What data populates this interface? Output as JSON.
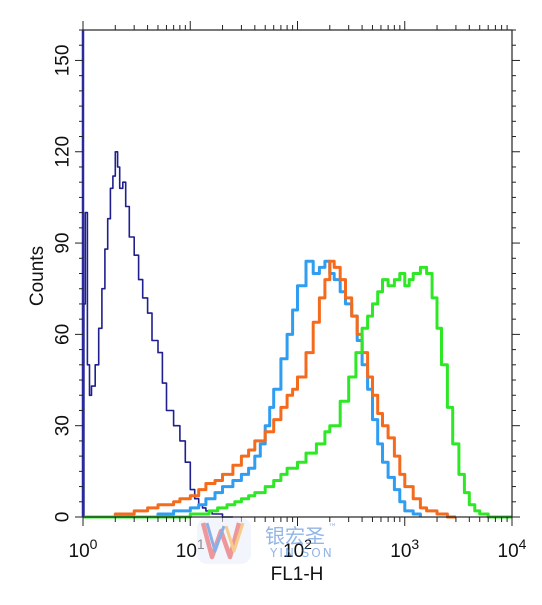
{
  "chart_data": {
    "type": "line",
    "xlabel": "FL1-H",
    "ylabel": "Counts",
    "x_scale": "log",
    "xlim": [
      1,
      10000
    ],
    "ylim": [
      0,
      160
    ],
    "x_ticks": [
      {
        "value": 1,
        "base": "10",
        "exp": "0"
      },
      {
        "value": 10,
        "base": "10",
        "exp": "1"
      },
      {
        "value": 100,
        "base": "10",
        "exp": "2"
      },
      {
        "value": 1000,
        "base": "10",
        "exp": "3"
      },
      {
        "value": 10000,
        "base": "10",
        "exp": "4"
      }
    ],
    "y_ticks": [
      0,
      30,
      60,
      90,
      120,
      150
    ],
    "grid": false,
    "legend": "none",
    "series": [
      {
        "color": "#1f1f8f",
        "x": [
          1.0,
          1.02,
          1.05,
          1.1,
          1.15,
          1.2,
          1.3,
          1.4,
          1.5,
          1.6,
          1.7,
          1.8,
          1.9,
          2.0,
          2.1,
          2.2,
          2.35,
          2.5,
          2.7,
          3.0,
          3.3,
          3.6,
          4.0,
          4.4,
          5.0,
          5.5,
          6.0,
          7.0,
          8.0,
          9.0,
          10.0,
          11.0,
          12.0,
          13.0,
          14.0,
          16.0,
          18.0,
          20.0,
          22.0,
          25.0
        ],
        "y": [
          0,
          70,
          100,
          50,
          40,
          43,
          50,
          62,
          75,
          88,
          98,
          108,
          112,
          120,
          115,
          108,
          110,
          102,
          92,
          86,
          78,
          72,
          67,
          58,
          54,
          44,
          35,
          30,
          25,
          18,
          9,
          6,
          4,
          3,
          2,
          1,
          1,
          0,
          0,
          0
        ]
      },
      {
        "color": "#2e9df2",
        "x": [
          1.0,
          3.0,
          5.0,
          7.0,
          10.0,
          12.0,
          14.0,
          17.0,
          20.0,
          25.0,
          30.0,
          35.0,
          40.0,
          45.0,
          50.0,
          55.0,
          60.0,
          70.0,
          80.0,
          90.0,
          100.0,
          120.0,
          140.0,
          160.0,
          180.0,
          200.0,
          220.0,
          250.0,
          280.0,
          320.0,
          360.0,
          400.0,
          450.0,
          500.0,
          560.0,
          620.0,
          700.0,
          800.0,
          900.0,
          1000.0,
          1200.0,
          1400.0
        ],
        "y": [
          0,
          0,
          1,
          2,
          3,
          4,
          6,
          8,
          10,
          12,
          14,
          16,
          20,
          24,
          30,
          36,
          42,
          52,
          60,
          68,
          76,
          84,
          80,
          82,
          84,
          80,
          78,
          74,
          70,
          66,
          58,
          50,
          42,
          32,
          24,
          18,
          13,
          9,
          5,
          2,
          1,
          0
        ]
      },
      {
        "color": "#f56b1e",
        "x": [
          1.0,
          2.0,
          3.0,
          4.0,
          5.0,
          6.0,
          7.0,
          8.0,
          10.0,
          12.0,
          14.0,
          17.0,
          20.0,
          25.0,
          30.0,
          35.0,
          40.0,
          50.0,
          60.0,
          70.0,
          80.0,
          90.0,
          100.0,
          120.0,
          140.0,
          160.0,
          180.0,
          200.0,
          220.0,
          250.0,
          280.0,
          320.0,
          360.0,
          400.0,
          450.0,
          500.0,
          560.0,
          620.0,
          700.0,
          800.0,
          900.0,
          1000.0,
          1200.0,
          1400.0,
          1600.0,
          2000.0,
          2500.0,
          3000.0
        ],
        "y": [
          0,
          1,
          2,
          3,
          4,
          4,
          5,
          6,
          7,
          9,
          11,
          12,
          14,
          17,
          20,
          22,
          25,
          28,
          32,
          36,
          40,
          42,
          46,
          54,
          64,
          72,
          78,
          84,
          82,
          78,
          72,
          66,
          60,
          54,
          46,
          40,
          34,
          30,
          26,
          20,
          14,
          10,
          6,
          3,
          2,
          1,
          0,
          0
        ]
      },
      {
        "color": "#2ee826",
        "x": [
          1.0,
          5.0,
          10.0,
          12.0,
          15.0,
          18.0,
          22.0,
          26.0,
          30.0,
          35.0,
          40.0,
          50.0,
          60.0,
          70.0,
          80.0,
          100.0,
          120.0,
          150.0,
          180.0,
          200.0,
          250.0,
          300.0,
          350.0,
          400.0,
          450.0,
          500.0,
          560.0,
          620.0,
          700.0,
          800.0,
          900.0,
          1000.0,
          1100.0,
          1200.0,
          1400.0,
          1600.0,
          1800.0,
          2000.0,
          2200.0,
          2500.0,
          2800.0,
          3200.0,
          3600.0,
          4000.0,
          4500.0,
          5000.0,
          6000.0,
          8000.0,
          10000.0
        ],
        "y": [
          0,
          0,
          1,
          1,
          2,
          3,
          4,
          5,
          6,
          7,
          8,
          10,
          12,
          14,
          16,
          18,
          21,
          24,
          28,
          30,
          38,
          46,
          54,
          62,
          66,
          70,
          74,
          78,
          76,
          78,
          80,
          76,
          78,
          80,
          82,
          80,
          72,
          62,
          50,
          36,
          24,
          14,
          8,
          4,
          2,
          1,
          0,
          0,
          0
        ]
      }
    ]
  },
  "watermark": {
    "brand_cn": "银宏圣",
    "brand_en": "YIN SON",
    "trademark": "™"
  }
}
